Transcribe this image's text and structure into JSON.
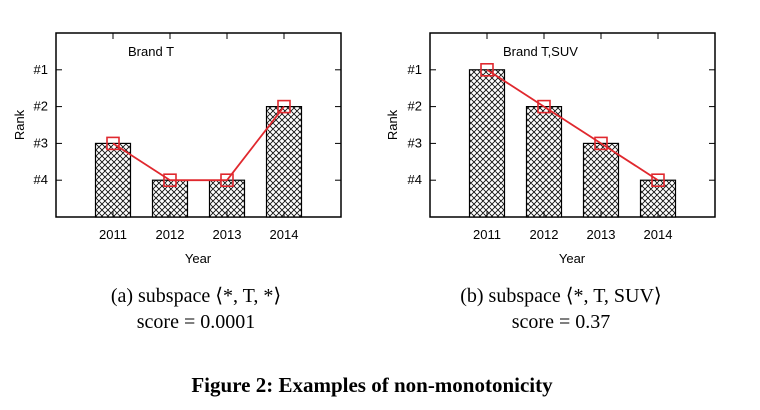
{
  "figure": {
    "caption": "Figure 2: Examples of non-monotonicity"
  },
  "panels": [
    {
      "caption_line1": "(a) subspace ⟨*, T, *⟩",
      "caption_line2": "score = 0.0001"
    },
    {
      "caption_line1": "(b) subspace ⟨*, T, SUV⟩",
      "caption_line2": "score = 0.37"
    }
  ],
  "chart_data": [
    {
      "type": "bar",
      "title": "Brand T",
      "xlabel": "Year",
      "ylabel": "Rank",
      "categories": [
        "2011",
        "2012",
        "2013",
        "2014"
      ],
      "values": [
        3,
        4,
        4,
        2
      ],
      "y_tick_labels": [
        "#1",
        "#2",
        "#3",
        "#4"
      ],
      "y_ticks": [
        1,
        2,
        3,
        4
      ],
      "ylim": [
        5,
        0
      ],
      "y_axis_inverted": true,
      "bar_pattern": "crosshatch",
      "overlay_line": {
        "color": "#e0282e",
        "marker": "square-open"
      },
      "grid": false
    },
    {
      "type": "bar",
      "title": "Brand T,SUV",
      "xlabel": "Year",
      "ylabel": "Rank",
      "categories": [
        "2011",
        "2012",
        "2013",
        "2014"
      ],
      "values": [
        1,
        2,
        3,
        4
      ],
      "y_tick_labels": [
        "#1",
        "#2",
        "#3",
        "#4"
      ],
      "y_ticks": [
        1,
        2,
        3,
        4
      ],
      "ylim": [
        5,
        0
      ],
      "y_axis_inverted": true,
      "bar_pattern": "crosshatch",
      "overlay_line": {
        "color": "#e0282e",
        "marker": "square-open"
      },
      "grid": false
    }
  ]
}
